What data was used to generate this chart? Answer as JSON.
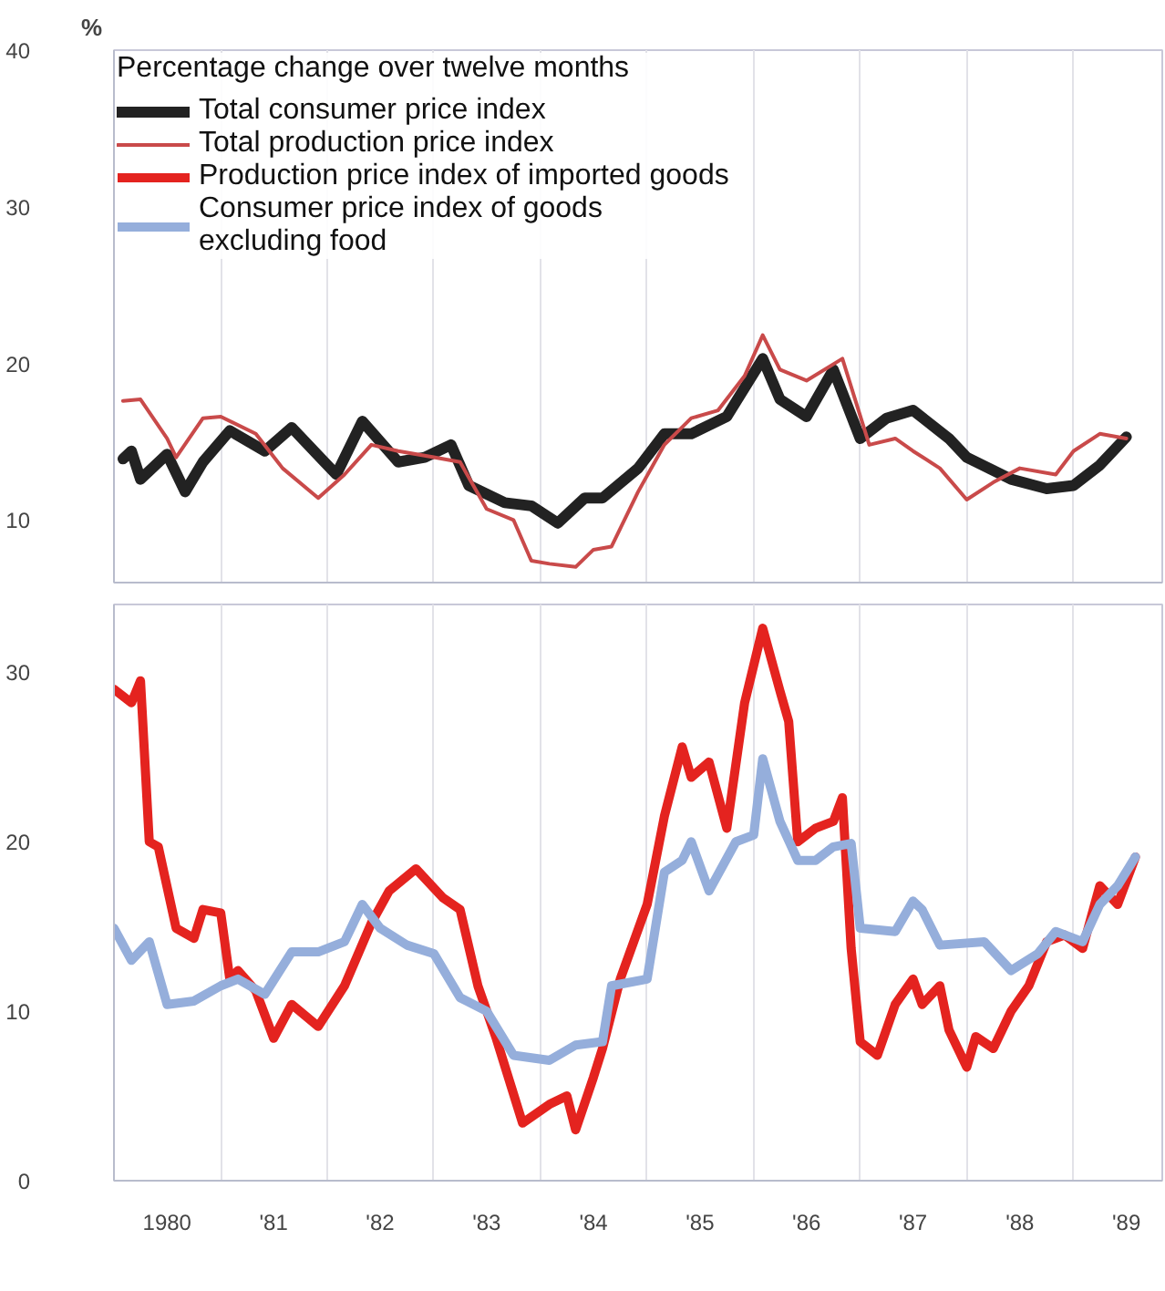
{
  "chart_data": [
    {
      "type": "line",
      "ylabel": "%",
      "legend_title": "Percentage change over twelve months",
      "legend": "top left",
      "grid": "x",
      "tick_labels": "y",
      "xlim": [
        "1980-01",
        "1989-11"
      ],
      "ylim": [
        6,
        40
      ],
      "yticks": [
        10,
        20,
        30,
        40
      ],
      "xticks": [
        {
          "value": "1981",
          "label": null
        },
        {
          "value": "1982",
          "label": null
        },
        {
          "value": "1983",
          "label": null
        },
        {
          "value": "1984",
          "label": null
        },
        {
          "value": "1985",
          "label": null
        },
        {
          "value": "1986",
          "label": null
        },
        {
          "value": "1987",
          "label": null
        },
        {
          "value": "1988",
          "label": null
        },
        {
          "value": "1989",
          "label": null
        }
      ],
      "series": [
        {
          "name": "Total consumer price index",
          "color": "#222222",
          "x": [
            "1980-02",
            "1980-03",
            "1980-04",
            "1980-07",
            "1980-09",
            "1980-11",
            "1981-02",
            "1981-06",
            "1981-09",
            "1982-02",
            "1982-05",
            "1982-09",
            "1982-12",
            "1983-03",
            "1983-05",
            "1983-09",
            "1983-12",
            "1984-03",
            "1984-06",
            "1984-08",
            "1984-12",
            "1985-03",
            "1985-06",
            "1985-10",
            "1986-02",
            "1986-04",
            "1986-07",
            "1986-10",
            "1987-01",
            "1987-04",
            "1987-07",
            "1987-11",
            "1988-01",
            "1988-06",
            "1988-10",
            "1989-01",
            "1989-04",
            "1989-07"
          ],
          "values": [
            13.9,
            14.4,
            12.6,
            14.2,
            11.8,
            13.7,
            15.7,
            14.4,
            15.9,
            12.9,
            16.3,
            13.7,
            14.0,
            14.8,
            12.2,
            11.1,
            10.9,
            9.8,
            11.4,
            11.4,
            13.3,
            15.5,
            15.5,
            16.6,
            20.3,
            17.7,
            16.6,
            19.6,
            15.2,
            16.5,
            17.0,
            15.2,
            14.0,
            12.6,
            12.0,
            12.2,
            13.5,
            15.3
          ]
        },
        {
          "name": "Total production price index",
          "color": "#c94a4a",
          "x": [
            "1980-02",
            "1980-04",
            "1980-07",
            "1980-08",
            "1980-11",
            "1981-01",
            "1981-05",
            "1981-08",
            "1981-12",
            "1982-03",
            "1982-06",
            "1982-09",
            "1983-01",
            "1983-04",
            "1983-07",
            "1983-10",
            "1983-12",
            "1984-02",
            "1984-05",
            "1984-07",
            "1984-09",
            "1984-12",
            "1985-03",
            "1985-06",
            "1985-09",
            "1985-12",
            "1986-02",
            "1986-04",
            "1986-07",
            "1986-11",
            "1987-02",
            "1987-05",
            "1987-07",
            "1987-10",
            "1988-01",
            "1988-04",
            "1988-07",
            "1988-11",
            "1989-01",
            "1989-04",
            "1989-07"
          ],
          "values": [
            17.6,
            17.7,
            15.2,
            14.0,
            16.5,
            16.6,
            15.5,
            13.3,
            11.4,
            12.9,
            14.8,
            14.4,
            14.0,
            13.7,
            10.7,
            10.0,
            7.4,
            7.2,
            7.0,
            8.1,
            8.3,
            11.8,
            14.8,
            16.5,
            17.0,
            19.2,
            21.8,
            19.6,
            18.9,
            20.3,
            14.8,
            15.2,
            14.4,
            13.3,
            11.3,
            12.4,
            13.3,
            12.9,
            14.4,
            15.5,
            15.2
          ]
        }
      ]
    },
    {
      "type": "line",
      "legend": "top left",
      "grid": "x",
      "xlim": [
        "1980-01",
        "1989-11"
      ],
      "ylim": [
        0,
        34
      ],
      "yticks": [
        0,
        10,
        20,
        30
      ],
      "xticks": [
        {
          "value": "1980-07",
          "label": "1980"
        },
        {
          "value": "1981",
          "label": null
        },
        {
          "value": "1981-07",
          "label": "'81"
        },
        {
          "value": "1982",
          "label": null
        },
        {
          "value": "1982-07",
          "label": "'82"
        },
        {
          "value": "1983",
          "label": null
        },
        {
          "value": "1983-07",
          "label": "'83"
        },
        {
          "value": "1984",
          "label": null
        },
        {
          "value": "1984-07",
          "label": "'84"
        },
        {
          "value": "1985",
          "label": null
        },
        {
          "value": "1985-07",
          "label": "'85"
        },
        {
          "value": "1986",
          "label": null
        },
        {
          "value": "1986-07",
          "label": "'86"
        },
        {
          "value": "1987",
          "label": null
        },
        {
          "value": "1987-07",
          "label": "'87"
        },
        {
          "value": "1988",
          "label": null
        },
        {
          "value": "1988-07",
          "label": "'88"
        },
        {
          "value": "1989",
          "label": null
        },
        {
          "value": "1989-07",
          "label": "'89"
        }
      ],
      "series": [
        {
          "name": "Production price index of imported goods",
          "color": "#e4231f",
          "x": [
            "1980-01",
            "1980-03",
            "1980-04",
            "1980-05",
            "1980-06",
            "1980-08",
            "1980-10",
            "1980-11",
            "1981-01",
            "1981-02",
            "1981-03",
            "1981-05",
            "1981-07",
            "1981-09",
            "1981-12",
            "1982-03",
            "1982-06",
            "1982-08",
            "1982-11",
            "1983-02",
            "1983-04",
            "1983-06",
            "1983-08",
            "1983-11",
            "1984-02",
            "1984-04",
            "1984-05",
            "1984-07",
            "1984-08",
            "1984-10",
            "1985-01",
            "1985-03",
            "1985-05",
            "1985-06",
            "1985-08",
            "1985-10",
            "1985-12",
            "1986-02",
            "1986-04",
            "1986-05",
            "1986-06",
            "1986-08",
            "1986-10",
            "1986-11",
            "1986-12",
            "1987-01",
            "1987-03",
            "1987-05",
            "1987-07",
            "1987-08",
            "1987-10",
            "1987-11",
            "1988-01",
            "1988-02",
            "1988-04",
            "1988-06",
            "1988-08",
            "1988-10",
            "1988-12",
            "1989-02",
            "1989-04",
            "1989-06",
            "1989-08"
          ],
          "values": [
            29.0,
            28.2,
            29.5,
            20.0,
            19.7,
            14.9,
            14.3,
            16.0,
            15.8,
            11.9,
            12.4,
            11.2,
            8.4,
            10.4,
            9.1,
            11.5,
            15.2,
            17.1,
            18.4,
            16.7,
            16.0,
            11.5,
            8.5,
            3.4,
            4.5,
            5.0,
            3.0,
            6.1,
            7.8,
            11.9,
            16.3,
            21.5,
            25.6,
            23.8,
            24.7,
            20.8,
            28.2,
            32.6,
            28.9,
            27.1,
            20.0,
            20.8,
            21.2,
            22.6,
            13.7,
            8.2,
            7.4,
            10.4,
            11.9,
            10.4,
            11.5,
            8.9,
            6.7,
            8.5,
            7.8,
            10.0,
            11.5,
            14.1,
            14.5,
            13.7,
            17.4,
            16.3,
            19.1
          ]
        },
        {
          "name": "Consumer price index of goods\nexcluding food",
          "color": "#95aedb",
          "x": [
            "1980-01",
            "1980-03",
            "1980-05",
            "1980-07",
            "1980-10",
            "1981-01",
            "1981-03",
            "1981-06",
            "1981-09",
            "1981-12",
            "1982-03",
            "1982-05",
            "1982-07",
            "1982-10",
            "1983-01",
            "1983-04",
            "1983-07",
            "1983-10",
            "1984-02",
            "1984-05",
            "1984-08",
            "1984-09",
            "1985-01",
            "1985-03",
            "1985-05",
            "1985-06",
            "1985-08",
            "1985-11",
            "1986-01",
            "1986-02",
            "1986-04",
            "1986-06",
            "1986-08",
            "1986-10",
            "1986-12",
            "1987-01",
            "1987-05",
            "1987-07",
            "1987-08",
            "1987-10",
            "1988-03",
            "1988-06",
            "1988-09",
            "1988-11",
            "1989-02",
            "1989-04",
            "1989-06",
            "1989-08"
          ],
          "values": [
            14.9,
            13.0,
            14.1,
            10.4,
            10.6,
            11.5,
            11.9,
            11.0,
            13.5,
            13.5,
            14.1,
            16.3,
            14.9,
            13.9,
            13.4,
            10.8,
            10.0,
            7.4,
            7.1,
            8.0,
            8.2,
            11.5,
            11.9,
            18.2,
            18.9,
            20.0,
            17.1,
            20.0,
            20.4,
            24.9,
            21.2,
            18.9,
            18.9,
            19.7,
            19.9,
            14.9,
            14.7,
            16.5,
            16.0,
            13.9,
            14.1,
            12.4,
            13.4,
            14.7,
            14.1,
            16.3,
            17.4,
            19.1
          ]
        }
      ]
    }
  ]
}
